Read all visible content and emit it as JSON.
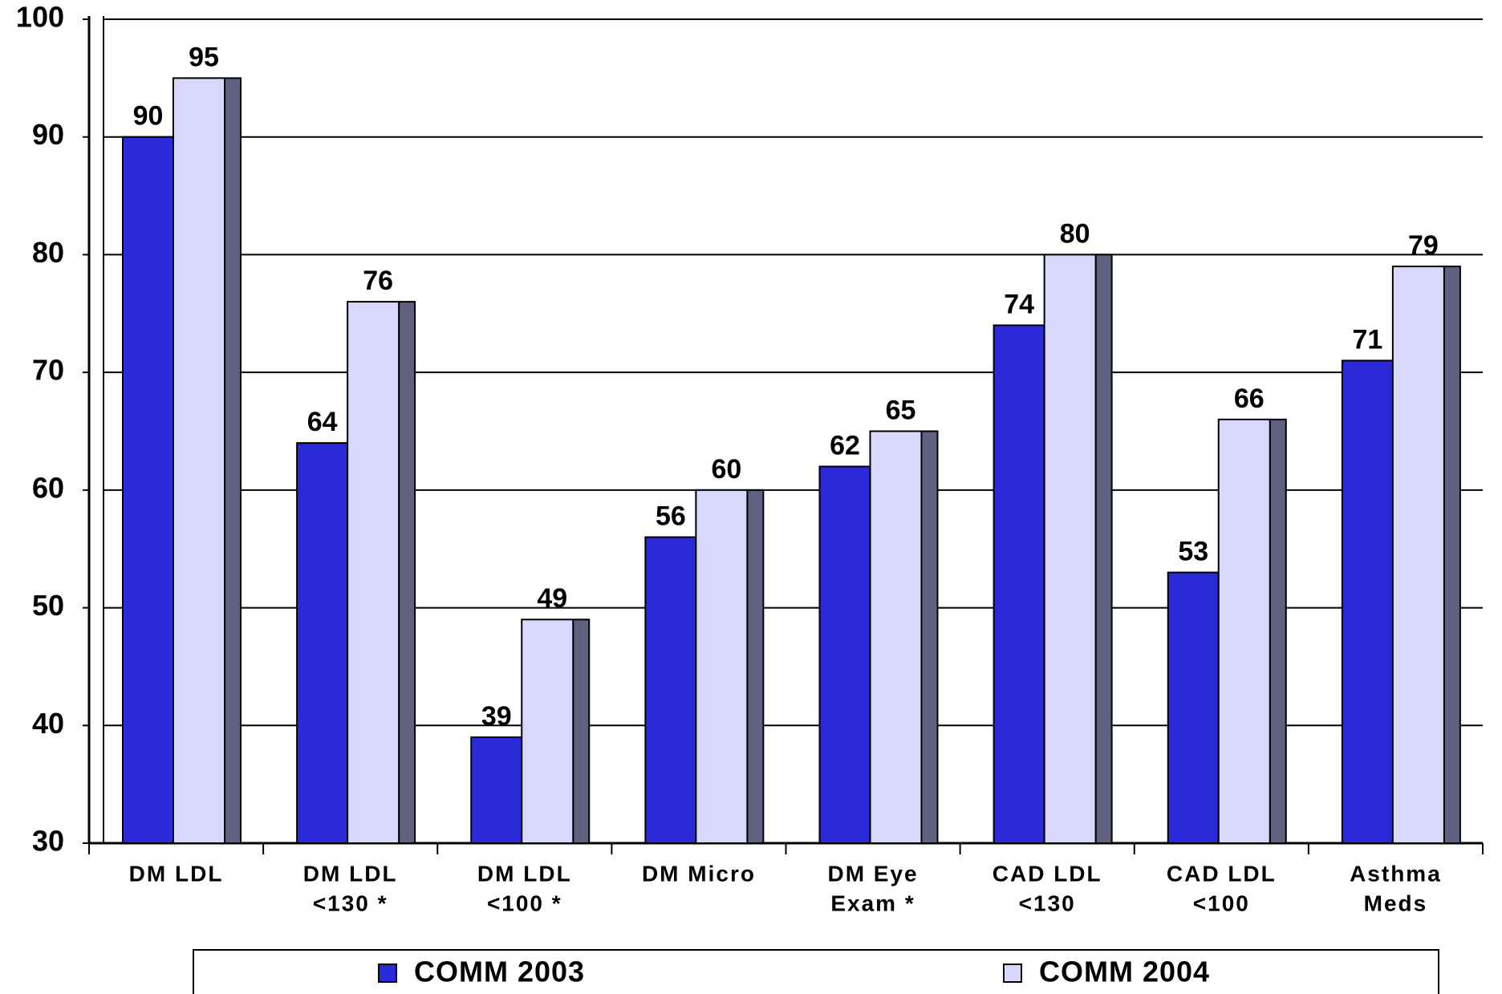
{
  "chart_data": {
    "type": "bar",
    "categories": [
      [
        "DM LDL"
      ],
      [
        "DM LDL",
        "<130 *"
      ],
      [
        "DM LDL",
        "<100 *"
      ],
      [
        "DM Micro"
      ],
      [
        "DM Eye",
        "Exam *"
      ],
      [
        "CAD LDL",
        "<130"
      ],
      [
        "CAD LDL",
        "<100"
      ],
      [
        "Asthma",
        "Meds"
      ]
    ],
    "series": [
      {
        "name": "COMM 2003",
        "color": "#2a2ad8",
        "values": [
          90,
          64,
          39,
          56,
          62,
          74,
          53,
          71
        ]
      },
      {
        "name": "COMM 2004",
        "color": "#d8d8fc",
        "values": [
          95,
          76,
          49,
          60,
          65,
          80,
          66,
          79
        ]
      }
    ],
    "ylim": [
      30,
      100
    ],
    "yticks": [
      30,
      40,
      50,
      60,
      70,
      80,
      90,
      100
    ],
    "grid": true,
    "legend": "bottom"
  }
}
